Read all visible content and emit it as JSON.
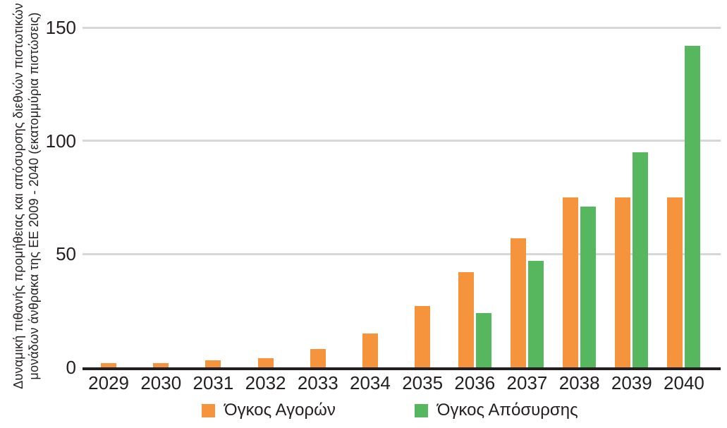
{
  "chart_data": {
    "type": "bar",
    "title": "",
    "xlabel": "",
    "ylabel": "Δυναμική πιθανής προμήθειας και απόσυρσης διεθνών πιστωτικών μονάδων άνθρακα της ΕΕ 2009 - 2040 (εκατομμύρια πιστώσεις)",
    "ylabel_lines": [
      "Δυναμική πιθανής προμήθειας και απόσυρσης διεθνών πιστωτικών",
      "μονάδων άνθρακα της ΕΕ 2009 - 2040 (εκατομμύρια πιστώσεις)"
    ],
    "categories": [
      "2029",
      "2030",
      "2031",
      "2032",
      "2033",
      "2034",
      "2035",
      "2036",
      "2037",
      "2038",
      "2039",
      "2040"
    ],
    "series": [
      {
        "id": "purchases",
        "name": "Όγκος Αγορών",
        "color": "#F5943C",
        "values": [
          2,
          2,
          3,
          4,
          8,
          15,
          27,
          42,
          57,
          75,
          75,
          75
        ]
      },
      {
        "id": "retirements",
        "name": "Όγκος Απόσυρσης",
        "color": "#56B75F",
        "values": [
          null,
          null,
          null,
          null,
          null,
          null,
          null,
          24,
          47,
          71,
          95,
          142
        ]
      }
    ],
    "yticks": [
      0,
      50,
      100,
      150
    ],
    "ylim": [
      0,
      150
    ],
    "grid": true,
    "legend_position": "bottom"
  },
  "colors": {
    "bar_orange": "#F5943C",
    "bar_green": "#56B75F",
    "axis": "#231F20",
    "gridline": "#D6D6D6",
    "text": "#231F20",
    "background": "#FFFFFF"
  }
}
